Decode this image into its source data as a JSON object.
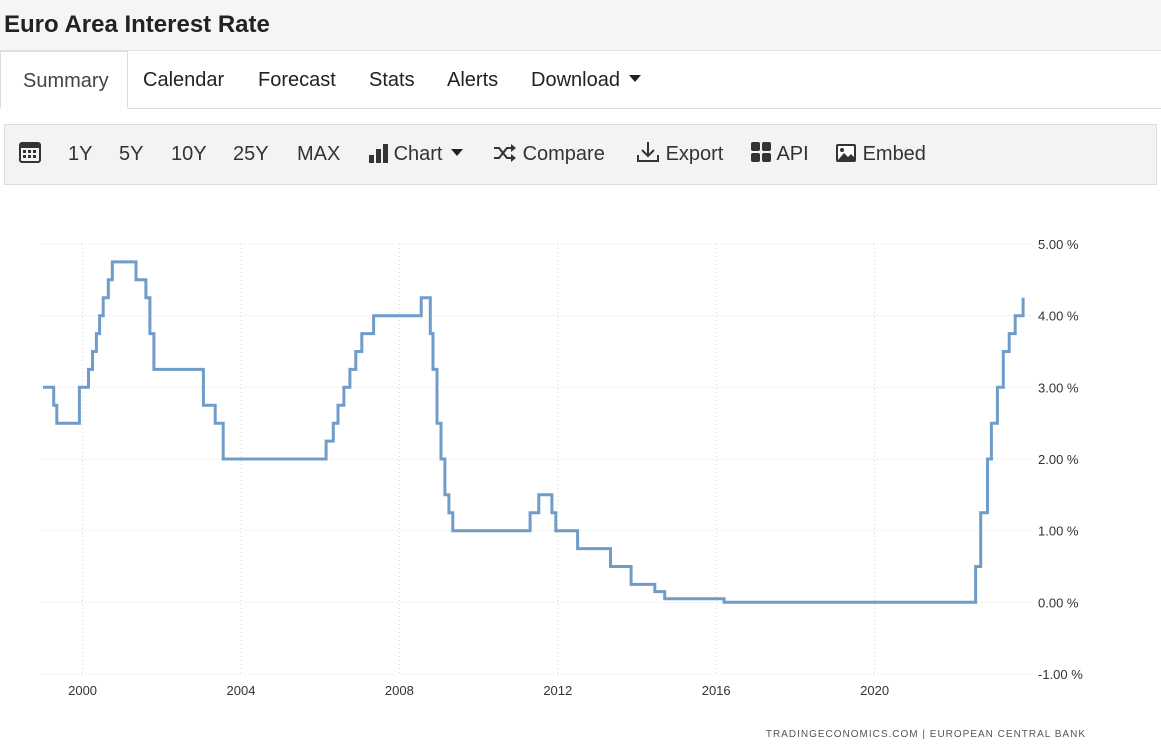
{
  "header": {
    "title": "Euro Area Interest Rate"
  },
  "tabs": [
    {
      "label": "Summary"
    },
    {
      "label": "Calendar"
    },
    {
      "label": "Forecast"
    },
    {
      "label": "Stats"
    },
    {
      "label": "Alerts"
    },
    {
      "label": "Download"
    }
  ],
  "toolbar": {
    "calendar_icon": "calendar-icon",
    "ranges": [
      "1Y",
      "5Y",
      "10Y",
      "25Y",
      "MAX"
    ],
    "chart_label": "Chart",
    "compare_label": "Compare",
    "export_label": "Export",
    "api_label": "API",
    "embed_label": "Embed"
  },
  "colors": {
    "line": "#6f9cc8",
    "grid": "#d6d6d6"
  },
  "chart_data": {
    "type": "line",
    "title": "",
    "xlabel": "",
    "ylabel": "",
    "xlim": [
      1998.95,
      2024.0
    ],
    "ylim": [
      -1.0,
      5.0
    ],
    "y_ticks": [
      5,
      4,
      3,
      2,
      1,
      0,
      -1
    ],
    "y_tick_labels": [
      "5.00 %",
      "4.00 %",
      "3.00 %",
      "2.00 %",
      "1.00 %",
      "0.00 %",
      "-1.00 %"
    ],
    "x_ticks": [
      2000,
      2004,
      2008,
      2012,
      2016,
      2020
    ],
    "x_tick_labels": [
      "2000",
      "2004",
      "2008",
      "2012",
      "2016",
      "2020"
    ],
    "grid": true,
    "source": "TRADINGECONOMICS.COM  |  EUROPEAN CENTRAL BANK",
    "series": [
      {
        "x": [
          1999.0,
          1999.27,
          1999.35,
          1999.85,
          1999.92,
          2000.07,
          2000.15,
          2000.25,
          2000.35,
          2000.43,
          2000.52,
          2000.65,
          2000.75,
          2000.85,
          2001.35,
          2001.6,
          2001.7,
          2001.8,
          2002.95,
          2003.05,
          2003.35,
          2003.55,
          2005.95,
          2006.15,
          2006.33,
          2006.45,
          2006.6,
          2006.75,
          2006.9,
          2007.05,
          2007.2,
          2007.35,
          2007.5,
          2008.55,
          2008.78,
          2008.85,
          2008.95,
          2009.05,
          2009.15,
          2009.25,
          2009.35,
          2011.3,
          2011.52,
          2011.85,
          2011.95,
          2012.5,
          2013.33,
          2013.85,
          2014.45,
          2014.7,
          2016.2,
          2022.55,
          2022.68,
          2022.85,
          2022.95,
          2023.1,
          2023.25,
          2023.4,
          2023.55,
          2023.75
        ],
        "y": [
          3.0,
          2.75,
          2.5,
          2.5,
          3.0,
          3.0,
          3.25,
          3.5,
          3.75,
          4.0,
          4.25,
          4.5,
          4.75,
          4.75,
          4.5,
          4.25,
          3.75,
          3.25,
          3.25,
          2.75,
          2.5,
          2.0,
          2.0,
          2.25,
          2.5,
          2.75,
          3.0,
          3.25,
          3.5,
          3.75,
          3.75,
          4.0,
          4.0,
          4.25,
          3.75,
          3.25,
          2.5,
          2.0,
          1.5,
          1.25,
          1.0,
          1.25,
          1.5,
          1.25,
          1.0,
          0.75,
          0.5,
          0.25,
          0.15,
          0.05,
          0.0,
          0.5,
          1.25,
          2.0,
          2.5,
          3.0,
          3.5,
          3.75,
          4.0,
          4.25
        ]
      }
    ]
  }
}
